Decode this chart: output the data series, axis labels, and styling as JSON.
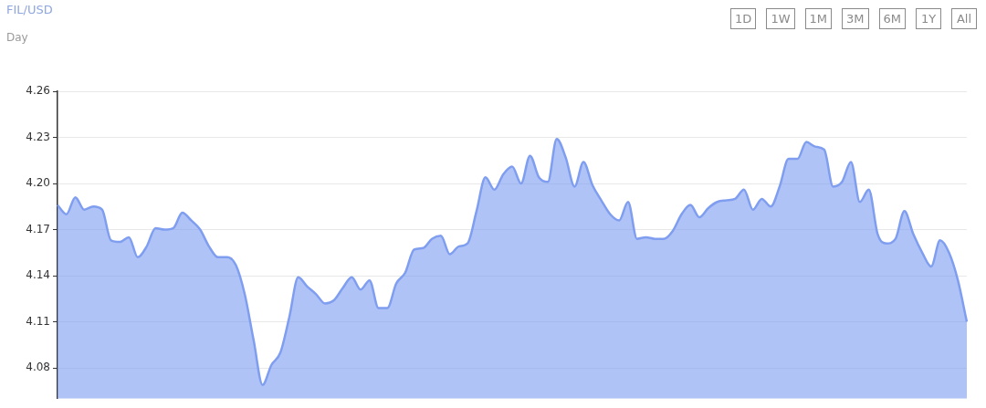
{
  "chart_data": {
    "type": "area",
    "title": "FIL/USD",
    "subtitle": "Day",
    "annotations": [
      "1D",
      "1W",
      "1M",
      "3M",
      "6M",
      "1Y",
      "All"
    ],
    "categories": [
      null,
      null,
      null,
      null,
      null,
      null,
      null,
      null,
      null,
      null,
      null,
      null,
      null,
      null,
      null,
      null,
      null,
      null,
      null,
      null,
      null,
      null,
      null,
      null,
      null,
      null,
      null,
      null,
      null,
      null,
      null,
      null,
      null,
      null,
      null,
      null,
      null,
      null,
      null,
      null,
      null,
      null,
      null,
      null,
      null,
      null,
      null,
      null,
      null,
      null,
      null,
      null,
      null,
      null,
      null,
      null,
      null,
      null,
      null,
      null,
      null,
      null,
      null,
      null,
      null,
      null,
      null,
      null,
      null,
      null,
      null,
      null,
      null,
      null,
      null,
      null,
      null,
      null,
      null,
      null,
      null,
      null,
      null,
      null,
      null,
      null,
      null,
      null,
      null,
      null,
      null,
      null,
      null,
      null,
      null,
      null,
      null,
      null,
      null,
      null,
      null,
      null,
      null
    ],
    "series": [
      {
        "color": "#7f9ef0",
        "values": [
          4.186,
          4.18,
          4.191,
          4.183,
          4.185,
          4.183,
          4.163,
          4.162,
          4.165,
          4.152,
          4.159,
          4.171,
          4.17,
          4.171,
          4.181,
          4.176,
          4.17,
          4.159,
          4.152,
          4.152,
          4.147,
          4.128,
          4.098,
          4.069,
          4.082,
          4.09,
          4.113,
          4.139,
          4.133,
          4.128,
          4.122,
          4.124,
          4.132,
          4.139,
          4.131,
          4.137,
          4.119,
          4.119,
          4.135,
          4.142,
          4.157,
          4.158,
          4.164,
          4.166,
          4.154,
          4.159,
          4.161,
          4.182,
          4.204,
          4.196,
          4.206,
          4.211,
          4.2,
          4.218,
          4.204,
          4.201,
          4.229,
          4.217,
          4.198,
          4.214,
          4.199,
          4.189,
          4.18,
          4.176,
          4.188,
          4.164,
          4.165,
          4.164,
          4.164,
          4.169,
          4.18,
          4.186,
          4.178,
          4.184,
          4.188,
          4.189,
          4.19,
          4.196,
          4.183,
          4.19,
          4.185,
          4.198,
          4.216,
          4.216,
          4.227,
          4.224,
          4.222,
          4.198,
          4.201,
          4.214,
          4.188,
          4.196,
          4.167,
          4.161,
          4.164,
          4.182,
          4.167,
          4.155,
          4.146,
          4.163,
          4.155,
          4.137,
          4.11
        ]
      }
    ],
    "ylim": [
      4.06,
      4.26
    ],
    "yticks": [
      4.08,
      4.11,
      4.14,
      4.17,
      {
        "value": 4.2,
        "label": "4.20"
      },
      4.23,
      4.26
    ],
    "grid": "y",
    "legend": false,
    "tick_labels": "y"
  }
}
